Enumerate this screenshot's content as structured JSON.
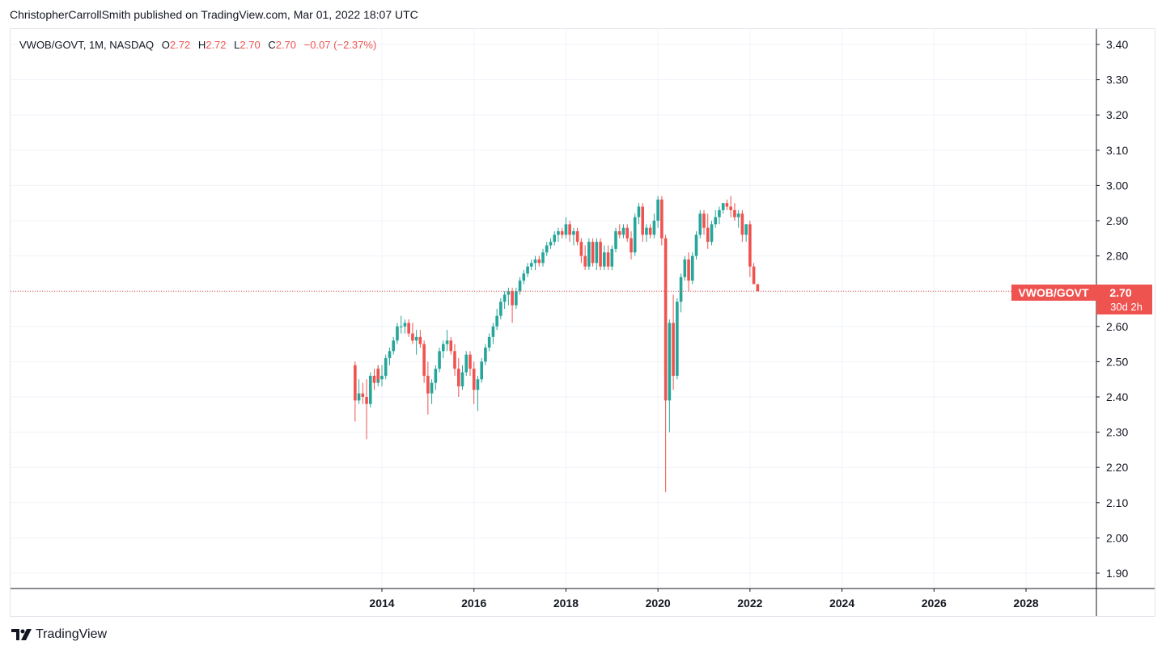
{
  "header": {
    "publisher": "ChristopherCarrollSmith published on TradingView.com, Mar 01, 2022 18:07 UTC"
  },
  "legend": {
    "symbol": "VWOB/GOVT, 1M, NASDAQ",
    "open_label": "O",
    "open": "2.72",
    "high_label": "H",
    "high": "2.72",
    "low_label": "L",
    "low": "2.70",
    "close_label": "C",
    "close": "2.70",
    "change": "−0.07 (−2.37%)"
  },
  "price_label": {
    "symbol": "VWOB/GOVT",
    "price": "2.70",
    "countdown": "30d 2h",
    "color": "#ef5350"
  },
  "brand": {
    "name": "TradingView"
  },
  "colors": {
    "up": "#26a69a",
    "down": "#ef5350",
    "grid": "#f0f3fa",
    "axis": "#131722"
  },
  "chart_data": {
    "type": "candlestick",
    "interval": "1M",
    "last_price": 2.7,
    "y_ticks": [
      "3.40",
      "3.30",
      "3.20",
      "3.10",
      "3.00",
      "2.90",
      "2.80",
      "2.70",
      "2.60",
      "2.50",
      "2.40",
      "2.30",
      "2.20",
      "2.10",
      "2.00",
      "1.90"
    ],
    "x_ticks": [
      "2014",
      "2016",
      "2018",
      "2020",
      "2022",
      "2024",
      "2026",
      "2028"
    ],
    "ylim": [
      1.87,
      3.42
    ],
    "xlim": [
      2010.9,
      2030.0
    ],
    "grid": true,
    "candles": [
      [
        2013.417,
        2.49,
        2.5,
        2.33,
        2.39
      ],
      [
        2013.5,
        2.39,
        2.45,
        2.38,
        2.41
      ],
      [
        2013.583,
        2.41,
        2.44,
        2.38,
        2.4
      ],
      [
        2013.667,
        2.4,
        2.45,
        2.28,
        2.38
      ],
      [
        2013.75,
        2.38,
        2.47,
        2.37,
        2.46
      ],
      [
        2013.833,
        2.46,
        2.48,
        2.42,
        2.44
      ],
      [
        2013.917,
        2.44,
        2.49,
        2.43,
        2.48
      ],
      [
        2013.917,
        2.48,
        2.49,
        2.44,
        2.45
      ],
      [
        2014.0,
        2.45,
        2.49,
        2.43,
        2.46
      ],
      [
        2014.083,
        2.46,
        2.52,
        2.45,
        2.51
      ],
      [
        2014.167,
        2.51,
        2.54,
        2.49,
        2.53
      ],
      [
        2014.25,
        2.53,
        2.57,
        2.52,
        2.56
      ],
      [
        2014.333,
        2.56,
        2.61,
        2.55,
        2.6
      ],
      [
        2014.417,
        2.6,
        2.63,
        2.58,
        2.6
      ],
      [
        2014.5,
        2.6,
        2.62,
        2.58,
        2.61
      ],
      [
        2014.583,
        2.61,
        2.62,
        2.57,
        2.58
      ],
      [
        2014.667,
        2.58,
        2.61,
        2.55,
        2.56
      ],
      [
        2014.75,
        2.56,
        2.59,
        2.52,
        2.57
      ],
      [
        2014.833,
        2.57,
        2.59,
        2.54,
        2.55
      ],
      [
        2014.917,
        2.55,
        2.56,
        2.44,
        2.46
      ],
      [
        2015.0,
        2.46,
        2.5,
        2.35,
        2.41
      ],
      [
        2015.083,
        2.41,
        2.45,
        2.38,
        2.44
      ],
      [
        2015.167,
        2.44,
        2.49,
        2.42,
        2.48
      ],
      [
        2015.25,
        2.48,
        2.54,
        2.47,
        2.53
      ],
      [
        2015.333,
        2.53,
        2.56,
        2.51,
        2.55
      ],
      [
        2015.417,
        2.55,
        2.59,
        2.53,
        2.56
      ],
      [
        2015.5,
        2.56,
        2.57,
        2.52,
        2.53
      ],
      [
        2015.583,
        2.53,
        2.55,
        2.46,
        2.48
      ],
      [
        2015.667,
        2.48,
        2.51,
        2.4,
        2.43
      ],
      [
        2015.75,
        2.43,
        2.49,
        2.42,
        2.47
      ],
      [
        2015.833,
        2.47,
        2.53,
        2.46,
        2.52
      ],
      [
        2015.917,
        2.52,
        2.53,
        2.46,
        2.48
      ],
      [
        2016.0,
        2.48,
        2.5,
        2.38,
        2.42
      ],
      [
        2016.083,
        2.42,
        2.46,
        2.36,
        2.45
      ],
      [
        2016.167,
        2.45,
        2.51,
        2.44,
        2.5
      ],
      [
        2016.25,
        2.5,
        2.55,
        2.49,
        2.54
      ],
      [
        2016.333,
        2.54,
        2.58,
        2.53,
        2.57
      ],
      [
        2016.417,
        2.57,
        2.61,
        2.55,
        2.6
      ],
      [
        2016.5,
        2.6,
        2.65,
        2.59,
        2.63
      ],
      [
        2016.583,
        2.63,
        2.68,
        2.62,
        2.67
      ],
      [
        2016.667,
        2.67,
        2.7,
        2.65,
        2.69
      ],
      [
        2016.75,
        2.69,
        2.71,
        2.66,
        2.7
      ],
      [
        2016.833,
        2.7,
        2.71,
        2.61,
        2.66
      ],
      [
        2016.917,
        2.66,
        2.71,
        2.65,
        2.7
      ],
      [
        2017.0,
        2.7,
        2.74,
        2.69,
        2.73
      ],
      [
        2017.083,
        2.73,
        2.76,
        2.72,
        2.75
      ],
      [
        2017.167,
        2.75,
        2.78,
        2.74,
        2.77
      ],
      [
        2017.25,
        2.77,
        2.79,
        2.76,
        2.78
      ],
      [
        2017.333,
        2.78,
        2.8,
        2.76,
        2.79
      ],
      [
        2017.417,
        2.79,
        2.8,
        2.77,
        2.78
      ],
      [
        2017.5,
        2.78,
        2.82,
        2.77,
        2.81
      ],
      [
        2017.583,
        2.81,
        2.84,
        2.8,
        2.83
      ],
      [
        2017.667,
        2.83,
        2.85,
        2.82,
        2.84
      ],
      [
        2017.75,
        2.84,
        2.87,
        2.83,
        2.86
      ],
      [
        2017.833,
        2.86,
        2.88,
        2.84,
        2.87
      ],
      [
        2017.917,
        2.87,
        2.88,
        2.85,
        2.86
      ],
      [
        2018.0,
        2.86,
        2.91,
        2.85,
        2.89
      ],
      [
        2018.083,
        2.89,
        2.9,
        2.84,
        2.86
      ],
      [
        2018.167,
        2.86,
        2.88,
        2.83,
        2.87
      ],
      [
        2018.25,
        2.87,
        2.88,
        2.83,
        2.84
      ],
      [
        2018.333,
        2.84,
        2.85,
        2.78,
        2.8
      ],
      [
        2018.417,
        2.8,
        2.83,
        2.76,
        2.77
      ],
      [
        2018.5,
        2.77,
        2.85,
        2.76,
        2.84
      ],
      [
        2018.583,
        2.84,
        2.85,
        2.77,
        2.78
      ],
      [
        2018.667,
        2.78,
        2.85,
        2.76,
        2.84
      ],
      [
        2018.75,
        2.84,
        2.85,
        2.76,
        2.77
      ],
      [
        2018.833,
        2.77,
        2.83,
        2.76,
        2.81
      ],
      [
        2018.917,
        2.81,
        2.83,
        2.76,
        2.77
      ],
      [
        2019.0,
        2.77,
        2.83,
        2.76,
        2.82
      ],
      [
        2019.083,
        2.82,
        2.88,
        2.81,
        2.87
      ],
      [
        2019.167,
        2.87,
        2.89,
        2.85,
        2.86
      ],
      [
        2019.25,
        2.86,
        2.89,
        2.85,
        2.88
      ],
      [
        2019.333,
        2.88,
        2.89,
        2.84,
        2.85
      ],
      [
        2019.417,
        2.85,
        2.87,
        2.79,
        2.81
      ],
      [
        2019.5,
        2.81,
        2.92,
        2.8,
        2.91
      ],
      [
        2019.583,
        2.91,
        2.95,
        2.89,
        2.94
      ],
      [
        2019.667,
        2.94,
        2.95,
        2.84,
        2.86
      ],
      [
        2019.75,
        2.86,
        2.89,
        2.84,
        2.88
      ],
      [
        2019.833,
        2.88,
        2.89,
        2.85,
        2.86
      ],
      [
        2019.917,
        2.86,
        2.92,
        2.85,
        2.9
      ],
      [
        2020.0,
        2.9,
        2.97,
        2.88,
        2.96
      ],
      [
        2020.083,
        2.96,
        2.97,
        2.83,
        2.85
      ],
      [
        2020.167,
        2.85,
        2.86,
        2.13,
        2.39
      ],
      [
        2020.25,
        2.39,
        2.62,
        2.3,
        2.61
      ],
      [
        2020.333,
        2.61,
        2.69,
        2.42,
        2.46
      ],
      [
        2020.417,
        2.46,
        2.68,
        2.45,
        2.67
      ],
      [
        2020.5,
        2.67,
        2.75,
        2.64,
        2.74
      ],
      [
        2020.583,
        2.74,
        2.8,
        2.73,
        2.79
      ],
      [
        2020.667,
        2.79,
        2.81,
        2.7,
        2.73
      ],
      [
        2020.75,
        2.73,
        2.81,
        2.72,
        2.8
      ],
      [
        2020.833,
        2.8,
        2.87,
        2.79,
        2.86
      ],
      [
        2020.917,
        2.86,
        2.93,
        2.85,
        2.92
      ],
      [
        2021.0,
        2.92,
        2.93,
        2.86,
        2.88
      ],
      [
        2021.083,
        2.88,
        2.92,
        2.82,
        2.84
      ],
      [
        2021.167,
        2.84,
        2.9,
        2.83,
        2.89
      ],
      [
        2021.25,
        2.89,
        2.93,
        2.88,
        2.91
      ],
      [
        2021.333,
        2.91,
        2.94,
        2.89,
        2.93
      ],
      [
        2021.417,
        2.93,
        2.95,
        2.92,
        2.95
      ],
      [
        2021.5,
        2.95,
        2.96,
        2.93,
        2.94
      ],
      [
        2021.583,
        2.94,
        2.97,
        2.91,
        2.93
      ],
      [
        2021.667,
        2.93,
        2.95,
        2.9,
        2.91
      ],
      [
        2021.75,
        2.91,
        2.93,
        2.88,
        2.92
      ],
      [
        2021.833,
        2.92,
        2.93,
        2.84,
        2.86
      ],
      [
        2021.917,
        2.86,
        2.89,
        2.84,
        2.89
      ],
      [
        2022.0,
        2.89,
        2.9,
        2.74,
        2.77
      ],
      [
        2022.083,
        2.77,
        2.78,
        2.72,
        2.72
      ],
      [
        2022.167,
        2.72,
        2.72,
        2.7,
        2.7
      ]
    ]
  }
}
